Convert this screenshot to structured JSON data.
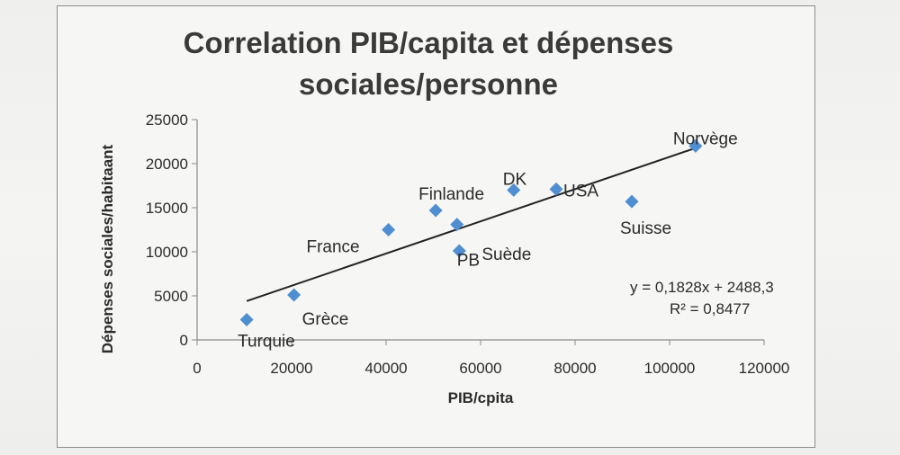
{
  "chart_data": {
    "type": "scatter",
    "title_lines": [
      "Correlation PIB/capita et dépenses",
      "sociales/personne"
    ],
    "xlabel": "PIB/cpita",
    "ylabel": "Dépenses sociales/habitaant",
    "xlim": [
      0,
      120000
    ],
    "ylim": [
      0,
      25000
    ],
    "x_ticks": [
      "0",
      "20000",
      "40000",
      "60000",
      "80000",
      "100000",
      "120000"
    ],
    "y_ticks": [
      "0",
      "5000",
      "10000",
      "15000",
      "20000",
      "25000"
    ],
    "grid": false,
    "legend": "none",
    "marker_color": "#4f8fd1",
    "points": [
      {
        "label": "Turquie",
        "x": 10500,
        "y": 2300
      },
      {
        "label": "Grèce",
        "x": 20500,
        "y": 5100
      },
      {
        "label": "France",
        "x": 40500,
        "y": 12500
      },
      {
        "label": "Finlande",
        "x": 50500,
        "y": 14700
      },
      {
        "label": "PB",
        "x": 55000,
        "y": 13100
      },
      {
        "label": "Suède",
        "x": 55500,
        "y": 10100
      },
      {
        "label": "DK",
        "x": 67000,
        "y": 17000
      },
      {
        "label": "USA",
        "x": 76000,
        "y": 17100
      },
      {
        "label": "Suisse",
        "x": 92000,
        "y": 15700
      },
      {
        "label": "Norvège",
        "x": 105500,
        "y": 22000
      }
    ],
    "trendline": {
      "type": "linear",
      "slope": 0.1828,
      "intercept": 2488.3,
      "x_range": [
        10500,
        105500
      ],
      "equation_text": "y = 0,1828x + 2488,3",
      "r2_text": "R² = 0,8477"
    }
  }
}
